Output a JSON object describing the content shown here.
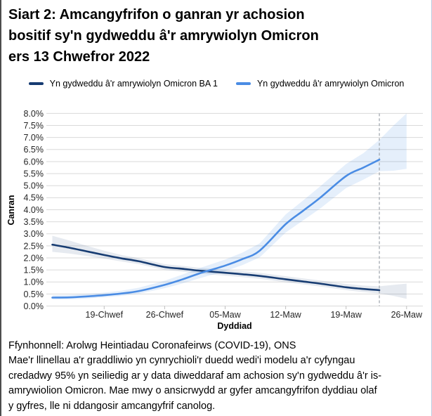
{
  "title": {
    "lines": [
      "Siart 2: Amcangyfrifon o ganran yr achosion",
      "bositif sy'n gydweddu â'r amrywiolyn Omicron",
      "ers 13 Chwefror 2022"
    ]
  },
  "legend": {
    "items": [
      {
        "label": "Yn gydweddu â'r amrywiolyn Omicron BA 1",
        "color": "#173c72"
      },
      {
        "label": "Yn gydweddu â'r amrywiolyn Omicron",
        "color": "#4a8ce4"
      }
    ]
  },
  "footer": {
    "source": "Ffynhonnell: Arolwg Heintiadau Coronafeirws (COVID-19), ONS",
    "note_lines": [
      "Mae'r llinellau a'r graddliwio yn cynrychioli'r duedd wedi'i modelu a'r cyfyngau",
      "credadwy 95% yn seiliedig ar y data diweddaraf am achosion sy'n gydweddu â'r is-",
      "amrywiolion Omicron. Mae mwy o ansicrwydd ar gyfer amcangyfrifon dyddiau olaf",
      "y gyfres, lle ni ddangosir amcangyfrif canolog."
    ]
  },
  "chart_data": {
    "type": "line",
    "title": "Siart 2: Amcangyfrifon o ganran yr achosion bositif sy'n gydweddu â'r amrywiolyn Omicron ers 13 Chwefror 2022",
    "xlabel": "Dyddiad",
    "ylabel": "Canran",
    "y_axis": {
      "min": 0,
      "max": 8,
      "step": 0.5,
      "unit": "%",
      "grid": true
    },
    "x_axis": {
      "day0_label": "13 Chwefror 2022",
      "range_days": [
        -0.7,
        42.9
      ],
      "ticks": [
        {
          "day": 6,
          "label": "19-Chwef"
        },
        {
          "day": 13,
          "label": "26-Chwef"
        },
        {
          "day": 20,
          "label": "05-Maw"
        },
        {
          "day": 27,
          "label": "12-Maw"
        },
        {
          "day": 34,
          "label": "19-Maw"
        },
        {
          "day": 41,
          "label": "26-Maw"
        }
      ]
    },
    "legend_position": "top",
    "annotations": {
      "dashed_line_day": 37.85
    },
    "series": [
      {
        "id": "ba1",
        "name": "Yn gydweddu â'r amrywiolyn Omicron BA 1",
        "color": "#173c72",
        "band_opacity": 0.11,
        "days": [
          0,
          2,
          4,
          6,
          8,
          10,
          13,
          15,
          17,
          20,
          22,
          24,
          27,
          29,
          31,
          34,
          36,
          37.85
        ],
        "values": [
          2.55,
          2.42,
          2.27,
          2.12,
          1.98,
          1.86,
          1.62,
          1.55,
          1.47,
          1.38,
          1.32,
          1.25,
          1.11,
          1.02,
          0.93,
          0.78,
          0.71,
          0.66
        ],
        "band_days": [
          0,
          2,
          4,
          6,
          8,
          10,
          13,
          15,
          17,
          20,
          22,
          24,
          27,
          29,
          31,
          34,
          36,
          37.85,
          39.5,
          41
        ],
        "band_lower": [
          2.25,
          2.18,
          2.08,
          1.97,
          1.85,
          1.74,
          1.5,
          1.43,
          1.35,
          1.26,
          1.2,
          1.13,
          0.99,
          0.9,
          0.81,
          0.66,
          0.58,
          0.52,
          0.42,
          0.3
        ],
        "band_upper": [
          2.92,
          2.72,
          2.5,
          2.3,
          2.12,
          1.99,
          1.74,
          1.67,
          1.59,
          1.5,
          1.45,
          1.38,
          1.24,
          1.15,
          1.06,
          0.92,
          0.85,
          0.82,
          0.88,
          0.93
        ]
      },
      {
        "id": "omicron",
        "name": "Yn gydweddu â'r amrywiolyn Omicron",
        "color": "#4a8ce4",
        "band_opacity": 0.14,
        "days": [
          0,
          2,
          4,
          6,
          8,
          10,
          13,
          15,
          17,
          20,
          22,
          24,
          27,
          29,
          31,
          34,
          36,
          37.85
        ],
        "values": [
          0.35,
          0.36,
          0.4,
          0.45,
          0.52,
          0.62,
          0.88,
          1.1,
          1.35,
          1.68,
          1.95,
          2.3,
          3.4,
          3.95,
          4.5,
          5.4,
          5.75,
          6.08
        ],
        "band_days": [
          0,
          2,
          4,
          6,
          8,
          10,
          13,
          15,
          17,
          20,
          22,
          24,
          27,
          29,
          31,
          34,
          36,
          37.85,
          39.5,
          41
        ],
        "band_lower": [
          0.27,
          0.28,
          0.31,
          0.36,
          0.42,
          0.51,
          0.74,
          0.93,
          1.15,
          1.45,
          1.7,
          2.02,
          3.05,
          3.55,
          4.05,
          4.9,
          5.25,
          5.6,
          5.62,
          5.7
        ],
        "band_upper": [
          0.45,
          0.46,
          0.5,
          0.56,
          0.64,
          0.76,
          1.05,
          1.3,
          1.57,
          1.93,
          2.22,
          2.6,
          3.8,
          4.38,
          4.97,
          5.9,
          6.35,
          6.9,
          7.5,
          8.0
        ]
      }
    ],
    "style": {
      "gridline_color": "#d9d9d9",
      "dashed_line_color": "#a3a9b0",
      "tick_color": "#bfbfbf"
    }
  }
}
